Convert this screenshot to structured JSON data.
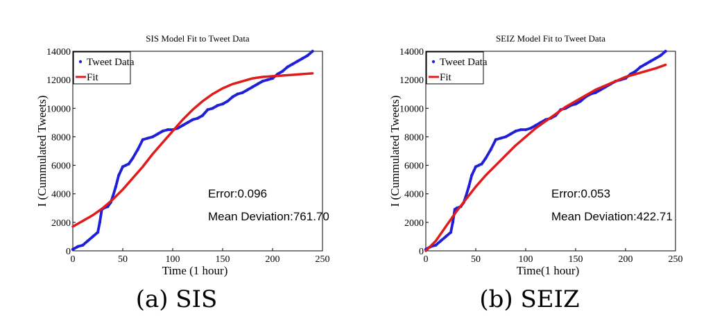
{
  "colors": {
    "data": "#1f1fd6",
    "fit": "#e01b1b",
    "axis": "#000000"
  },
  "panels": [
    {
      "caption": "(a) SIS",
      "annotation_error": "Error:0.096",
      "annotation_deviation": "Mean Deviation:761.70"
    },
    {
      "caption": "(b) SEIZ",
      "annotation_error": "Error:0.053",
      "annotation_deviation": "Mean Deviation:422.71"
    }
  ],
  "chart_data": [
    {
      "type": "line",
      "title": "SIS Model Fit to Tweet Data",
      "xlabel": "Time (1 hour)",
      "ylabel": "I (Cummulated Tweets)",
      "xlim": [
        0,
        250
      ],
      "ylim": [
        0,
        14000
      ],
      "xticks": [
        0,
        50,
        100,
        150,
        200,
        250
      ],
      "yticks": [
        0,
        2000,
        4000,
        6000,
        8000,
        10000,
        12000,
        14000
      ],
      "grid": false,
      "legend": "top-left",
      "series": [
        {
          "name": "Tweet Data",
          "style": "dots",
          "x": [
            0,
            5,
            10,
            15,
            20,
            25,
            27,
            29,
            31,
            35,
            38,
            40,
            43,
            46,
            50,
            53,
            56,
            60,
            65,
            70,
            75,
            80,
            85,
            90,
            95,
            100,
            105,
            110,
            115,
            120,
            125,
            130,
            135,
            140,
            145,
            150,
            155,
            160,
            165,
            170,
            175,
            180,
            185,
            190,
            195,
            200,
            205,
            210,
            215,
            220,
            225,
            230,
            235,
            240
          ],
          "y": [
            100,
            300,
            400,
            700,
            1000,
            1300,
            2000,
            2900,
            3000,
            3100,
            3400,
            3800,
            4500,
            5300,
            5900,
            6000,
            6100,
            6500,
            7100,
            7800,
            7900,
            8000,
            8200,
            8400,
            8500,
            8500,
            8600,
            8800,
            9000,
            9200,
            9300,
            9500,
            9900,
            10000,
            10200,
            10300,
            10500,
            10800,
            11000,
            11100,
            11300,
            11500,
            11700,
            11900,
            12000,
            12100,
            12400,
            12600,
            12900,
            13100,
            13300,
            13500,
            13700,
            14000
          ]
        },
        {
          "name": "Fit",
          "style": "line",
          "x": [
            0,
            10,
            20,
            30,
            40,
            50,
            60,
            70,
            80,
            90,
            100,
            110,
            120,
            130,
            140,
            150,
            160,
            170,
            180,
            190,
            200,
            210,
            220,
            230,
            240
          ],
          "y": [
            1700,
            2100,
            2500,
            3000,
            3600,
            4300,
            5100,
            5900,
            6800,
            7600,
            8400,
            9200,
            9900,
            10500,
            11000,
            11400,
            11700,
            11900,
            12100,
            12200,
            12250,
            12300,
            12350,
            12400,
            12450
          ]
        }
      ]
    },
    {
      "type": "line",
      "title": "SEIZ Model Fit to Tweet Data",
      "xlabel": "Time(1 hour)",
      "ylabel": "I (Cummulated Tweets)",
      "xlim": [
        0,
        250
      ],
      "ylim": [
        0,
        14000
      ],
      "xticks": [
        0,
        50,
        100,
        150,
        200,
        250
      ],
      "yticks": [
        0,
        2000,
        4000,
        6000,
        8000,
        10000,
        12000,
        14000
      ],
      "grid": false,
      "legend": "top-left",
      "series": [
        {
          "name": "Tweet Data",
          "style": "dots",
          "x": [
            0,
            5,
            10,
            15,
            20,
            25,
            27,
            29,
            31,
            35,
            38,
            40,
            43,
            46,
            50,
            53,
            56,
            60,
            65,
            70,
            75,
            80,
            85,
            90,
            95,
            100,
            105,
            110,
            115,
            120,
            125,
            130,
            135,
            140,
            145,
            150,
            155,
            160,
            165,
            170,
            175,
            180,
            185,
            190,
            195,
            200,
            205,
            210,
            215,
            220,
            225,
            230,
            235,
            240
          ],
          "y": [
            100,
            300,
            400,
            700,
            1000,
            1300,
            2000,
            2900,
            3000,
            3100,
            3400,
            3800,
            4500,
            5300,
            5900,
            6000,
            6100,
            6500,
            7100,
            7800,
            7900,
            8000,
            8200,
            8400,
            8500,
            8500,
            8600,
            8800,
            9000,
            9200,
            9300,
            9500,
            9900,
            10000,
            10200,
            10300,
            10500,
            10800,
            11000,
            11100,
            11300,
            11500,
            11700,
            11900,
            12000,
            12100,
            12400,
            12600,
            12900,
            13100,
            13300,
            13500,
            13700,
            14000
          ]
        },
        {
          "name": "Fit",
          "style": "line",
          "x": [
            0,
            10,
            20,
            30,
            40,
            50,
            60,
            70,
            80,
            90,
            100,
            110,
            120,
            130,
            140,
            150,
            160,
            170,
            180,
            190,
            200,
            210,
            220,
            230,
            240
          ],
          "y": [
            0,
            700,
            1700,
            2700,
            3600,
            4500,
            5300,
            6000,
            6700,
            7400,
            8000,
            8600,
            9100,
            9600,
            10100,
            10500,
            10900,
            11300,
            11600,
            11900,
            12200,
            12400,
            12600,
            12800,
            13050
          ]
        }
      ]
    }
  ]
}
